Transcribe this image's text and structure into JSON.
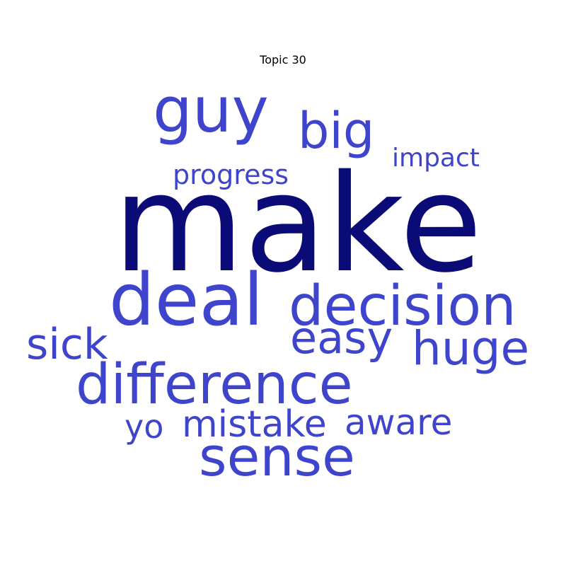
{
  "title": "Topic 30",
  "colors": {
    "top_word": "#0b0b78",
    "word": "#3f44cc",
    "background": "#ffffff"
  },
  "words": [
    {
      "text": "make"
    },
    {
      "text": "guy"
    },
    {
      "text": "big"
    },
    {
      "text": "impact"
    },
    {
      "text": "progress"
    },
    {
      "text": "deal"
    },
    {
      "text": "decision"
    },
    {
      "text": "easy"
    },
    {
      "text": "huge"
    },
    {
      "text": "sick"
    },
    {
      "text": "difference"
    },
    {
      "text": "yo"
    },
    {
      "text": "mistake"
    },
    {
      "text": "aware"
    },
    {
      "text": "sense"
    }
  ]
}
